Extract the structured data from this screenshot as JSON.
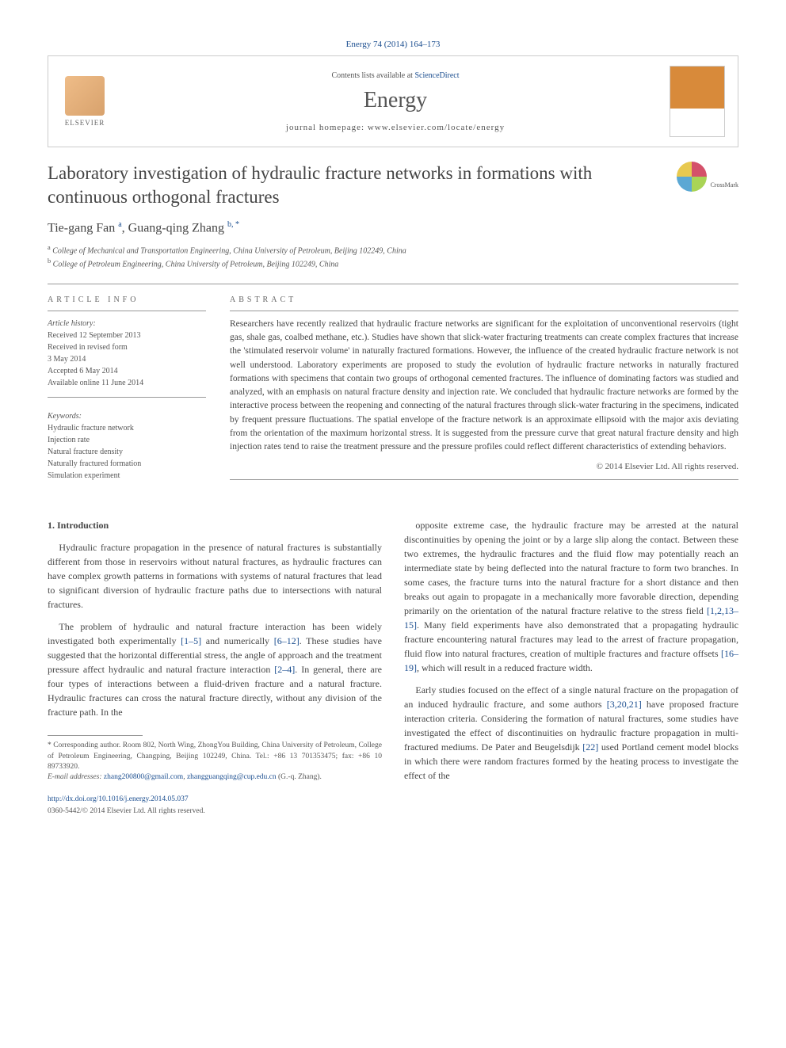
{
  "citation": "Energy 74 (2014) 164–173",
  "header": {
    "contents_prefix": "Contents lists available at ",
    "contents_link": "ScienceDirect",
    "journal": "Energy",
    "homepage_prefix": "journal homepage: ",
    "homepage_url": "www.elsevier.com/locate/energy",
    "publisher": "ELSEVIER"
  },
  "crossmark_label": "CrossMark",
  "title": "Laboratory investigation of hydraulic fracture networks in formations with continuous orthogonal fractures",
  "authors_html": "Tie-gang Fan <sup>a</sup>, Guang-qing Zhang <sup>b, *</sup>",
  "affiliations": [
    {
      "sup": "a",
      "text": "College of Mechanical and Transportation Engineering, China University of Petroleum, Beijing 102249, China"
    },
    {
      "sup": "b",
      "text": "College of Petroleum Engineering, China University of Petroleum, Beijing 102249, China"
    }
  ],
  "article_info_head": "ARTICLE INFO",
  "history": {
    "label": "Article history:",
    "received": "Received 12 September 2013",
    "revised_1": "Received in revised form",
    "revised_2": "3 May 2014",
    "accepted": "Accepted 6 May 2014",
    "online": "Available online 11 June 2014"
  },
  "keywords": {
    "label": "Keywords:",
    "items": [
      "Hydraulic fracture network",
      "Injection rate",
      "Natural fracture density",
      "Naturally fractured formation",
      "Simulation experiment"
    ]
  },
  "abstract_head": "ABSTRACT",
  "abstract": "Researchers have recently realized that hydraulic fracture networks are significant for the exploitation of unconventional reservoirs (tight gas, shale gas, coalbed methane, etc.). Studies have shown that slick-water fracturing treatments can create complex fractures that increase the 'stimulated reservoir volume' in naturally fractured formations. However, the influence of the created hydraulic fracture network is not well understood. Laboratory experiments are proposed to study the evolution of hydraulic fracture networks in naturally fractured formations with specimens that contain two groups of orthogonal cemented fractures. The influence of dominating factors was studied and analyzed, with an emphasis on natural fracture density and injection rate. We concluded that hydraulic fracture networks are formed by the interactive process between the reopening and connecting of the natural fractures through slick-water fracturing in the specimens, indicated by frequent pressure fluctuations. The spatial envelope of the fracture network is an approximate ellipsoid with the major axis deviating from the orientation of the maximum horizontal stress. It is suggested from the pressure curve that great natural fracture density and high injection rates tend to raise the treatment pressure and the pressure profiles could reflect different characteristics of extending behaviors.",
  "copyright": "© 2014 Elsevier Ltd. All rights reserved.",
  "section_1_head": "1. Introduction",
  "col1_p1": "Hydraulic fracture propagation in the presence of natural fractures is substantially different from those in reservoirs without natural fractures, as hydraulic fractures can have complex growth patterns in formations with systems of natural fractures that lead to significant diversion of hydraulic fracture paths due to intersections with natural fractures.",
  "col1_p2_a": "The problem of hydraulic and natural fracture interaction has been widely investigated both experimentally ",
  "ref_1_5": "[1–5]",
  "col1_p2_b": " and numerically ",
  "ref_6_12": "[6–12]",
  "col1_p2_c": ". These studies have suggested that the horizontal differential stress, the angle of approach and the treatment pressure affect hydraulic and natural fracture interaction ",
  "ref_2_4": "[2–4]",
  "col1_p2_d": ". In general, there are four types of interactions between a fluid-driven fracture and a natural fracture. Hydraulic fractures can cross the natural fracture directly, without any division of the fracture path. In the",
  "col2_p1_a": "opposite extreme case, the hydraulic fracture may be arrested at the natural discontinuities by opening the joint or by a large slip along the contact. Between these two extremes, the hydraulic fractures and the fluid flow may potentially reach an intermediate state by being deflected into the natural fracture to form two branches. In some cases, the fracture turns into the natural fracture for a short distance and then breaks out again to propagate in a mechanically more favorable direction, depending primarily on the orientation of the natural fracture relative to the stress field ",
  "ref_1_2_13_15": "[1,2,13–15]",
  "col2_p1_b": ". Many field experiments have also demonstrated that a propagating hydraulic fracture encountering natural fractures may lead to the arrest of fracture propagation, fluid flow into natural fractures, creation of multiple fractures and fracture offsets ",
  "ref_16_19": "[16–19]",
  "col2_p1_c": ", which will result in a reduced fracture width.",
  "col2_p2_a": "Early studies focused on the effect of a single natural fracture on the propagation of an induced hydraulic fracture, and some authors ",
  "ref_3_20_21": "[3,20,21]",
  "col2_p2_b": " have proposed fracture interaction criteria. Considering the formation of natural fractures, some studies have investigated the effect of discontinuities on hydraulic fracture propagation in multi-fractured mediums. De Pater and Beugelsdijk ",
  "ref_22": "[22]",
  "col2_p2_c": " used Portland cement model blocks in which there were random fractures formed by the heating process to investigate the effect of the",
  "footnote": {
    "corr_label": "* Corresponding author. Room 802, North Wing, ZhongYou Building, China University of Petroleum, College of Petroleum Engineering, Changping, Beijing 102249, China. Tel.: +86 13 701353475; fax: +86 10 89733920.",
    "email_label": "E-mail addresses:",
    "email1": "zhang200800@gmail.com",
    "email_sep": ", ",
    "email2": "zhangguangqing@cup.edu.cn",
    "email_author": "(G.-q. Zhang)."
  },
  "doi": {
    "url": "http://dx.doi.org/10.1016/j.energy.2014.05.037",
    "issn": "0360-5442/© 2014 Elsevier Ltd. All rights reserved."
  }
}
